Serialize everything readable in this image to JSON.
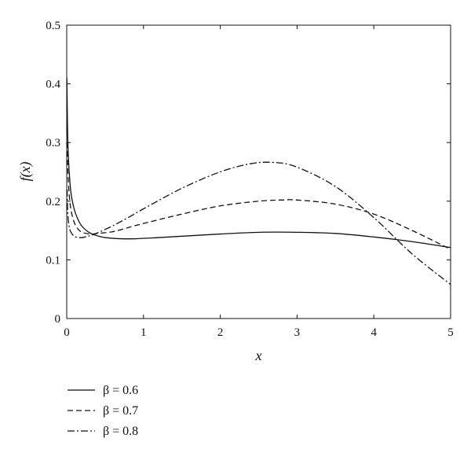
{
  "chart_data": {
    "type": "line",
    "title": "",
    "xlabel": "x",
    "ylabel": "f(x)",
    "xlim": [
      0,
      5
    ],
    "ylim": [
      0,
      0.5
    ],
    "xticks": [
      "0",
      "1",
      "2",
      "3",
      "4",
      "5"
    ],
    "yticks": [
      "0",
      "0.1",
      "0.2",
      "0.3",
      "0.4",
      "0.5"
    ],
    "grid": false,
    "legend_position": "bottom-left, below plot",
    "series": [
      {
        "name": "β = 0.6",
        "linestyle": "solid",
        "x": [
          0.002,
          0.01,
          0.02,
          0.04,
          0.06,
          0.1,
          0.15,
          0.2,
          0.3,
          0.4,
          0.5,
          0.7,
          0.9,
          1.2,
          1.6,
          2.0,
          2.5,
          3.0,
          3.5,
          4.0,
          4.5,
          5.0
        ],
        "y": [
          0.41,
          0.33,
          0.28,
          0.235,
          0.21,
          0.185,
          0.168,
          0.157,
          0.146,
          0.141,
          0.138,
          0.136,
          0.136,
          0.138,
          0.141,
          0.144,
          0.147,
          0.147,
          0.145,
          0.139,
          0.131,
          0.121
        ]
      },
      {
        "name": "β = 0.7",
        "linestyle": "dashed",
        "x": [
          0.005,
          0.01,
          0.02,
          0.04,
          0.06,
          0.1,
          0.15,
          0.2,
          0.3,
          0.4,
          0.6,
          0.8,
          1.0,
          1.5,
          2.0,
          2.5,
          2.8,
          3.0,
          3.5,
          4.0,
          4.5,
          5.0
        ],
        "y": [
          0.3,
          0.27,
          0.235,
          0.2,
          0.182,
          0.163,
          0.152,
          0.147,
          0.144,
          0.145,
          0.148,
          0.155,
          0.162,
          0.178,
          0.192,
          0.2,
          0.202,
          0.202,
          0.195,
          0.178,
          0.15,
          0.118
        ]
      },
      {
        "name": "β = 0.8",
        "linestyle": "dash-dot",
        "x": [
          0.005,
          0.01,
          0.02,
          0.04,
          0.06,
          0.1,
          0.15,
          0.2,
          0.3,
          0.4,
          0.6,
          0.8,
          1.0,
          1.5,
          2.0,
          2.4,
          2.7,
          3.0,
          3.5,
          4.0,
          4.5,
          5.0
        ],
        "y": [
          0.22,
          0.19,
          0.168,
          0.152,
          0.146,
          0.14,
          0.138,
          0.138,
          0.141,
          0.146,
          0.158,
          0.172,
          0.187,
          0.222,
          0.25,
          0.264,
          0.266,
          0.258,
          0.225,
          0.172,
          0.11,
          0.058
        ]
      }
    ]
  }
}
